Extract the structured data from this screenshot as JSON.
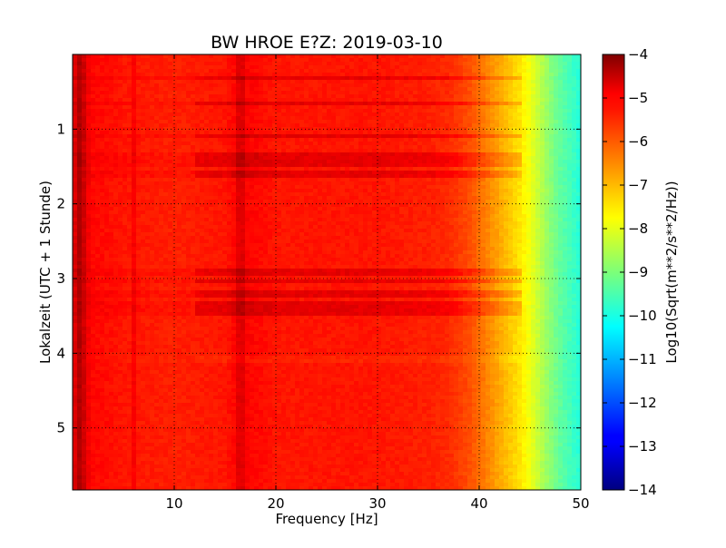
{
  "chart_data": {
    "type": "heatmap",
    "title": "BW HROE E?Z: 2019-03-10",
    "xlabel": "Frequency [Hz]",
    "ylabel": "Lokalzeit (UTC + 1 Stunde)",
    "xlim": [
      0,
      50
    ],
    "ylim": [
      5.83,
      0
    ],
    "x_ticks": [
      10,
      20,
      30,
      40,
      50
    ],
    "y_ticks": [
      1,
      2,
      3,
      4,
      5
    ],
    "x_tick_labels": [
      "10",
      "20",
      "30",
      "40",
      "50"
    ],
    "y_tick_labels": [
      "1",
      "2",
      "3",
      "4",
      "5"
    ],
    "grid": true,
    "colorbar": {
      "label": "Log10(Sqrt(m**2/s**2/Hz))",
      "range": [
        -14,
        -4
      ],
      "ticks": [
        -4,
        -5,
        -6,
        -7,
        -8,
        -9,
        -10,
        -11,
        -12,
        -13,
        -14
      ],
      "tick_labels": [
        "−4",
        "−5",
        "−6",
        "−7",
        "−8",
        "−9",
        "−10",
        "−11",
        "−12",
        "−13",
        "−14"
      ],
      "colormap": "jet"
    },
    "spectrum_profile": {
      "frequency_hz": [
        0,
        0.5,
        1,
        2,
        5,
        10,
        15,
        16.5,
        20,
        25,
        30,
        35,
        37,
        39,
        40,
        41,
        42,
        43,
        44,
        45,
        46,
        47,
        48,
        49,
        50
      ],
      "log_amplitude": [
        -5.2,
        -4.6,
        -5.0,
        -5.3,
        -5.45,
        -5.55,
        -5.45,
        -5.2,
        -5.45,
        -5.45,
        -5.45,
        -5.55,
        -5.65,
        -6.0,
        -6.3,
        -6.6,
        -6.9,
        -7.2,
        -7.5,
        -7.9,
        -8.4,
        -8.9,
        -9.3,
        -9.6,
        -9.9
      ]
    },
    "high_energy_time_bands": [
      {
        "from": 0.28,
        "to": 0.36
      },
      {
        "from": 0.63,
        "to": 0.68
      },
      {
        "from": 1.05,
        "to": 1.13
      },
      {
        "from": 1.3,
        "to": 1.4
      },
      {
        "from": 1.42,
        "to": 1.5
      },
      {
        "from": 1.55,
        "to": 1.63
      },
      {
        "from": 2.88,
        "to": 2.94
      },
      {
        "from": 3.0,
        "to": 3.06
      },
      {
        "from": 3.18,
        "to": 3.24
      },
      {
        "from": 3.3,
        "to": 3.38
      },
      {
        "from": 3.42,
        "to": 3.48
      }
    ],
    "low_energy_time_bands": [
      {
        "from": 4.05,
        "to": 4.12
      }
    ],
    "persistent_frequency_lines_hz": [
      0.5,
      1,
      16.5,
      6
    ]
  }
}
